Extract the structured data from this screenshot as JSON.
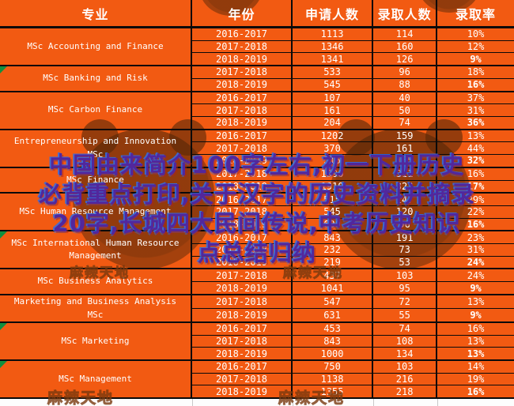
{
  "page": {
    "background_color": "#f25a12",
    "grid_color": "#0a0a0a",
    "text_color": "#ffffff"
  },
  "overlay": {
    "lines": [
      "中国由来简介100字左右,初一下册历史",
      "必背重点打印,关于汉字的历史资料并摘录",
      "20字,长城四大民间传说,中考历史知识",
      "点总结归纳"
    ],
    "fill_color": "#52279c",
    "glow_color": "#2f6fe8"
  },
  "watermark": {
    "text": "麻辣天地",
    "blob_color": "#562808"
  },
  "chart_data": {
    "type": "table",
    "columns": [
      "专业",
      "年份",
      "申请人数",
      "录取人数",
      "录取率"
    ],
    "sections": [
      {
        "program": "MSc Accounting and Finance",
        "corner_mark": false,
        "rows": [
          {
            "year": "2016-2017",
            "applicants": "1113",
            "admitted": "114",
            "rate": "10%"
          },
          {
            "year": "2017-2018",
            "applicants": "1346",
            "admitted": "160",
            "rate": "12%"
          },
          {
            "year": "2018-2019",
            "applicants": "1341",
            "admitted": "126",
            "rate": "9%"
          }
        ]
      },
      {
        "program": "MSc Banking and Risk",
        "corner_mark": true,
        "rows": [
          {
            "year": "2017-2018",
            "applicants": "533",
            "admitted": "96",
            "rate": "18%"
          },
          {
            "year": "2018-2019",
            "applicants": "545",
            "admitted": "88",
            "rate": "16%"
          }
        ]
      },
      {
        "program": "MSc Carbon Finance",
        "corner_mark": false,
        "rows": [
          {
            "year": "2016-2017",
            "applicants": "107",
            "admitted": "40",
            "rate": "37%"
          },
          {
            "year": "2017-2018",
            "applicants": "161",
            "admitted": "50",
            "rate": "31%"
          },
          {
            "year": "2018-2019",
            "applicants": "204",
            "admitted": "74",
            "rate": "36%"
          }
        ]
      },
      {
        "program": "Entrepreneurship and Innovation MSc",
        "corner_mark": false,
        "rows": [
          {
            "year": "2016-2017",
            "applicants": "1202",
            "admitted": "159",
            "rate": "13%"
          },
          {
            "year": "2017-2018",
            "applicants": "370",
            "admitted": "161",
            "rate": "44%"
          },
          {
            "year": "2018-2019",
            "applicants": "515",
            "admitted": "165",
            "rate": "32%"
          }
        ]
      },
      {
        "program": "MSc Finance",
        "corner_mark": false,
        "rows": [
          {
            "year": "2017-2018",
            "applicants": "1990",
            "admitted": "311",
            "rate": "16%"
          },
          {
            "year": "2018-2019",
            "applicants": "1910",
            "admitted": "323",
            "rate": "17%"
          }
        ]
      },
      {
        "program": "MSc Human Resource Management",
        "corner_mark": false,
        "rows": [
          {
            "year": "2016-2017",
            "applicants": "515",
            "admitted": "147",
            "rate": "29%"
          },
          {
            "year": "2017-2018",
            "applicants": "545",
            "admitted": "120",
            "rate": "22%"
          },
          {
            "year": "2018-2019",
            "applicants": "600",
            "admitted": "96",
            "rate": "16%"
          }
        ]
      },
      {
        "program": "MSc International Human Resource Management",
        "corner_mark": true,
        "rows": [
          {
            "year": "2016-2017",
            "applicants": "843",
            "admitted": "191",
            "rate": "23%"
          },
          {
            "year": "2017-2018",
            "applicants": "232",
            "admitted": "73",
            "rate": "31%"
          },
          {
            "year": "2018-2019",
            "applicants": "219",
            "admitted": "53",
            "rate": "24%"
          }
        ]
      },
      {
        "program": "MSc Business Analytics",
        "corner_mark": false,
        "rows": [
          {
            "year": "2017-2018",
            "applicants": "437",
            "admitted": "103",
            "rate": "24%"
          },
          {
            "year": "2018-2019",
            "applicants": "1041",
            "admitted": "95",
            "rate": "9%"
          }
        ]
      },
      {
        "program": "Marketing and Business Analysis MSc",
        "corner_mark": false,
        "rows": [
          {
            "year": "2017-2018",
            "applicants": "547",
            "admitted": "72",
            "rate": "13%"
          },
          {
            "year": "2018-2019",
            "applicants": "631",
            "admitted": "55",
            "rate": "9%"
          }
        ]
      },
      {
        "program": "MSc Marketing",
        "corner_mark": true,
        "rows": [
          {
            "year": "2016-2017",
            "applicants": "453",
            "admitted": "74",
            "rate": "16%"
          },
          {
            "year": "2017-2018",
            "applicants": "843",
            "admitted": "108",
            "rate": "13%"
          },
          {
            "year": "2018-2019",
            "applicants": "1000",
            "admitted": "134",
            "rate": "13%"
          }
        ]
      },
      {
        "program": "MSc Management",
        "corner_mark": true,
        "rows": [
          {
            "year": "2016-2017",
            "applicants": "750",
            "admitted": "103",
            "rate": "14%"
          },
          {
            "year": "2017-2018",
            "applicants": "1138",
            "admitted": "216",
            "rate": "19%"
          },
          {
            "year": "2018-2019",
            "applicants": "1355",
            "admitted": "218",
            "rate": "16%"
          }
        ]
      }
    ]
  }
}
